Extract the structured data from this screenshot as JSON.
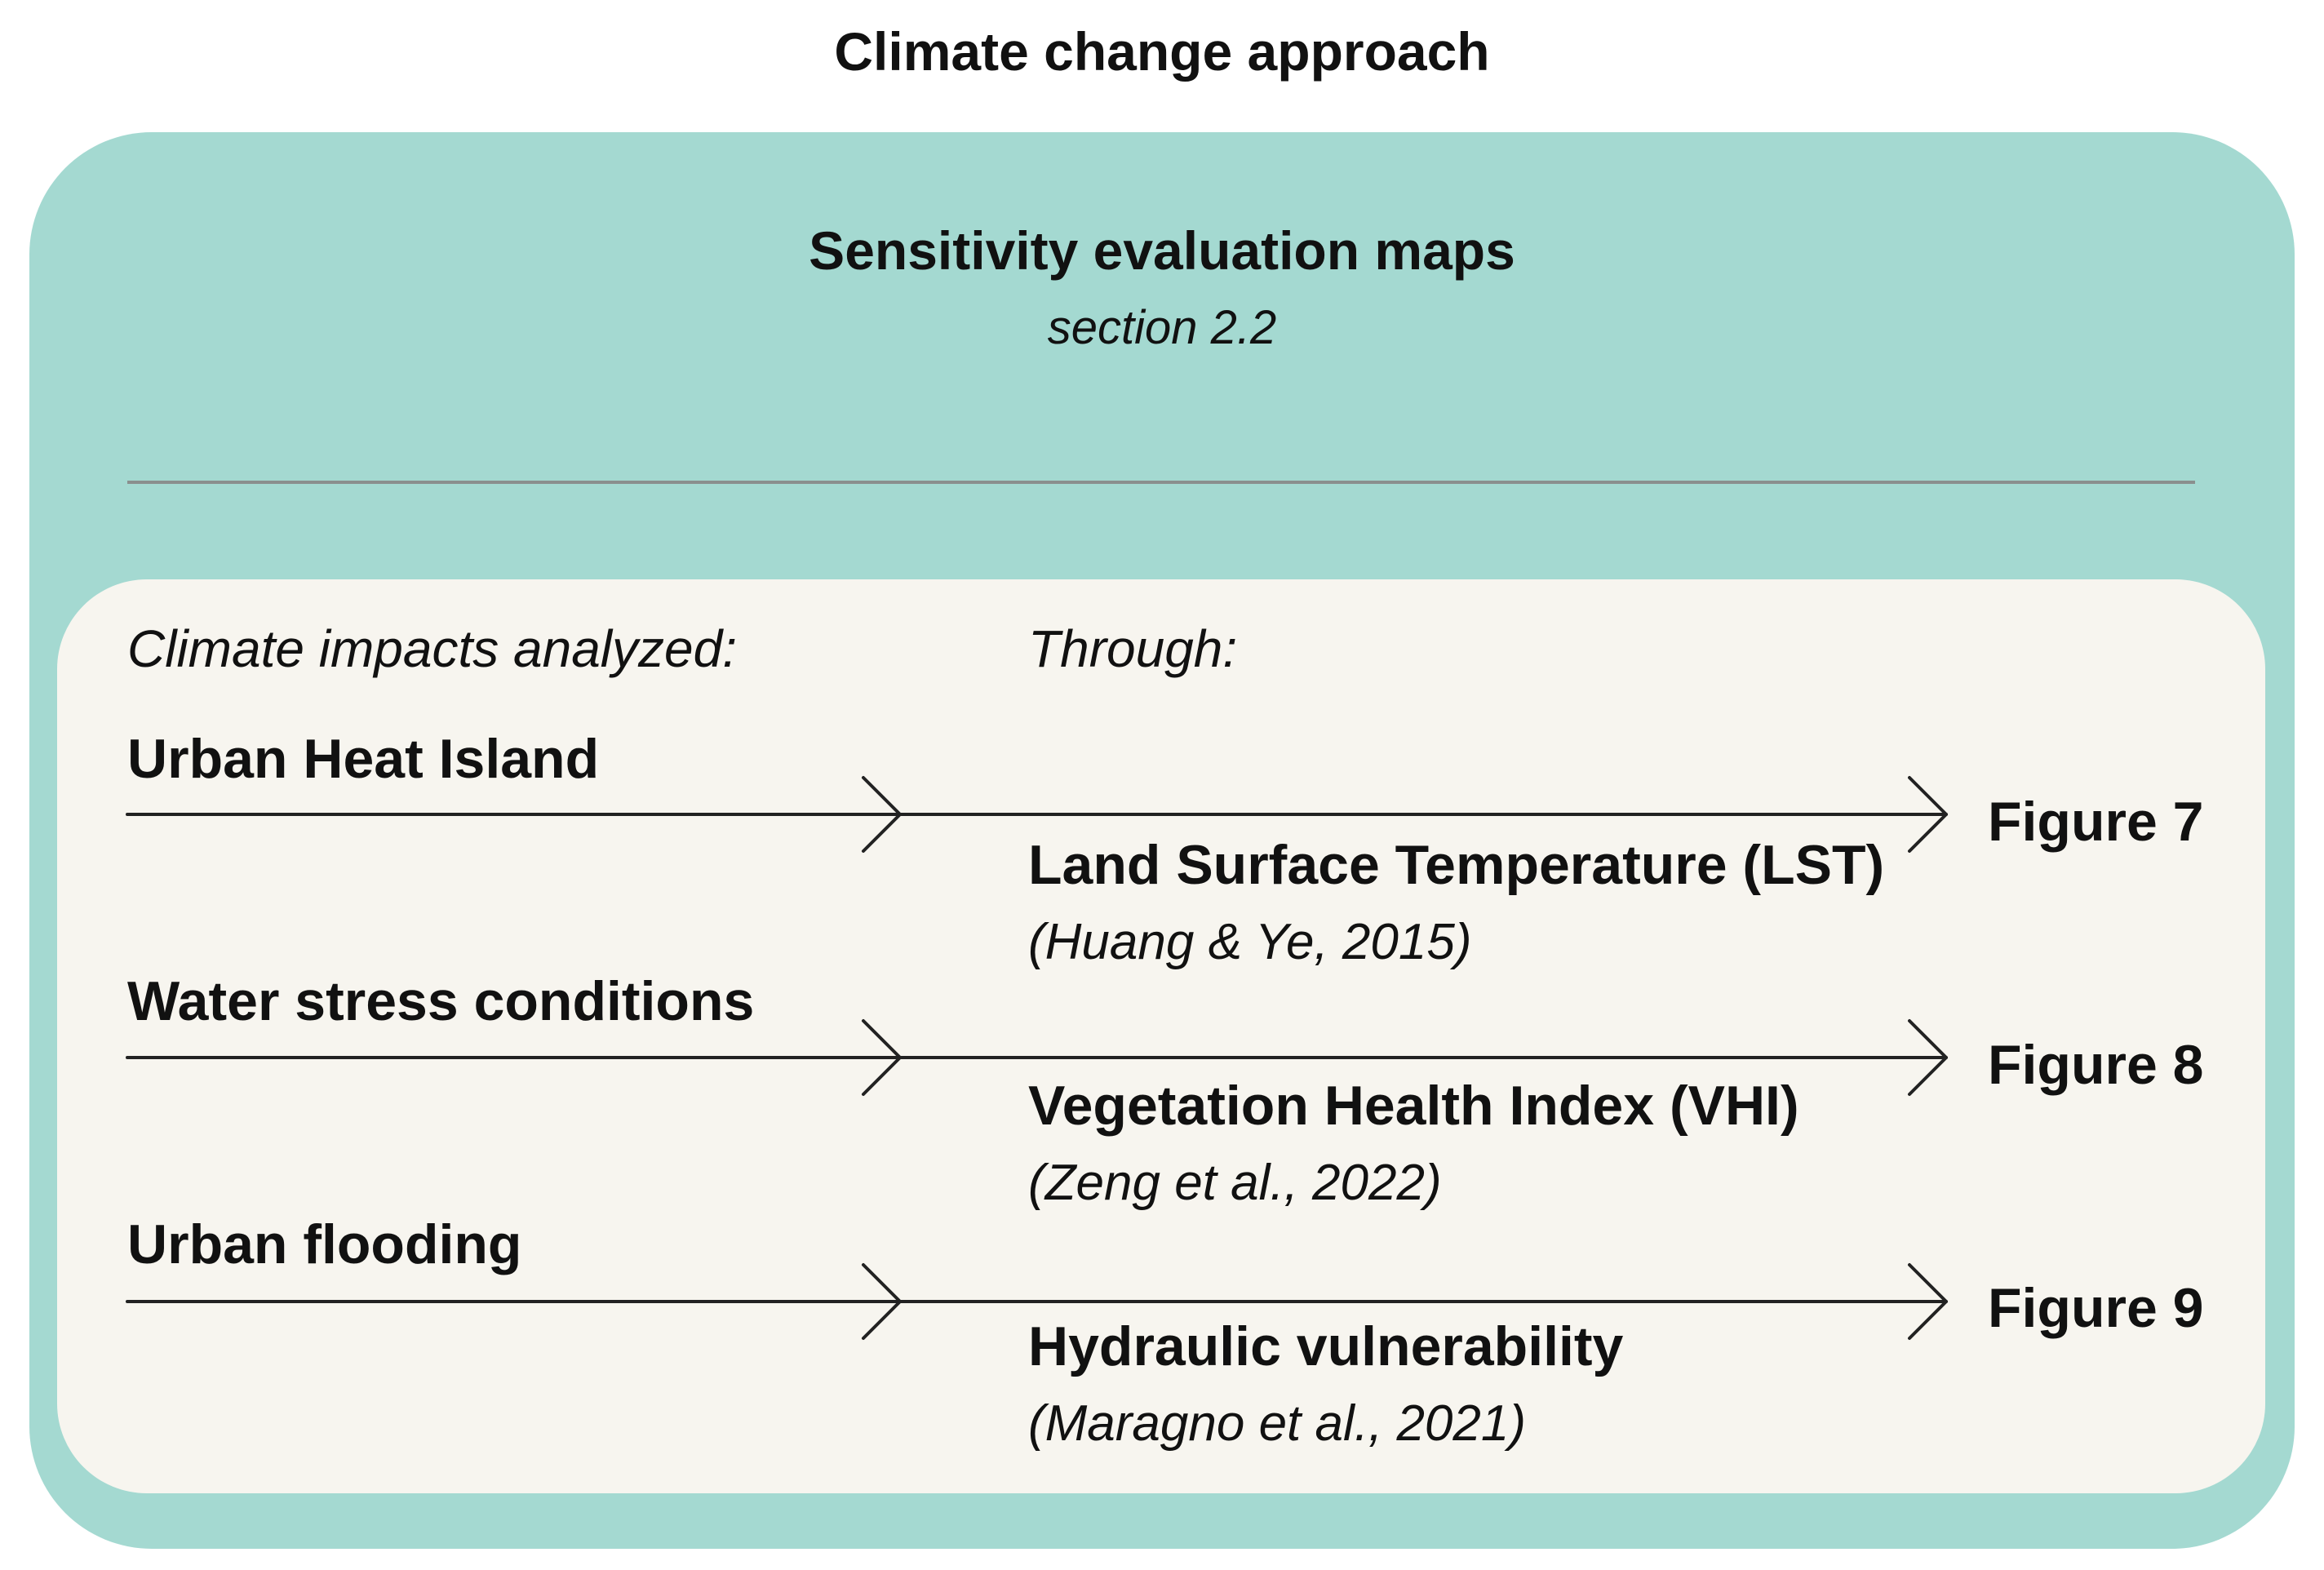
{
  "title": "Climate change approach",
  "panel": {
    "title": "Sensitivity evaluation maps",
    "subtitle": "section 2.2"
  },
  "table": {
    "headers": {
      "impacts": "Climate impacts analyzed:",
      "through": "Through:"
    },
    "rows": [
      {
        "impact": "Urban Heat Island",
        "method": "Land Surface Temperature (LST)",
        "reference": "(Huang & Ye, 2015)",
        "figure": "Figure 7"
      },
      {
        "impact": "Water stress conditions",
        "method": "Vegetation Health Index (VHI)",
        "reference": "(Zeng et al., 2022)",
        "figure": "Figure 8"
      },
      {
        "impact": "Urban flooding",
        "method": "Hydraulic vulnerability",
        "reference": "(Maragno et al., 2021)",
        "figure": "Figure 9"
      }
    ]
  }
}
